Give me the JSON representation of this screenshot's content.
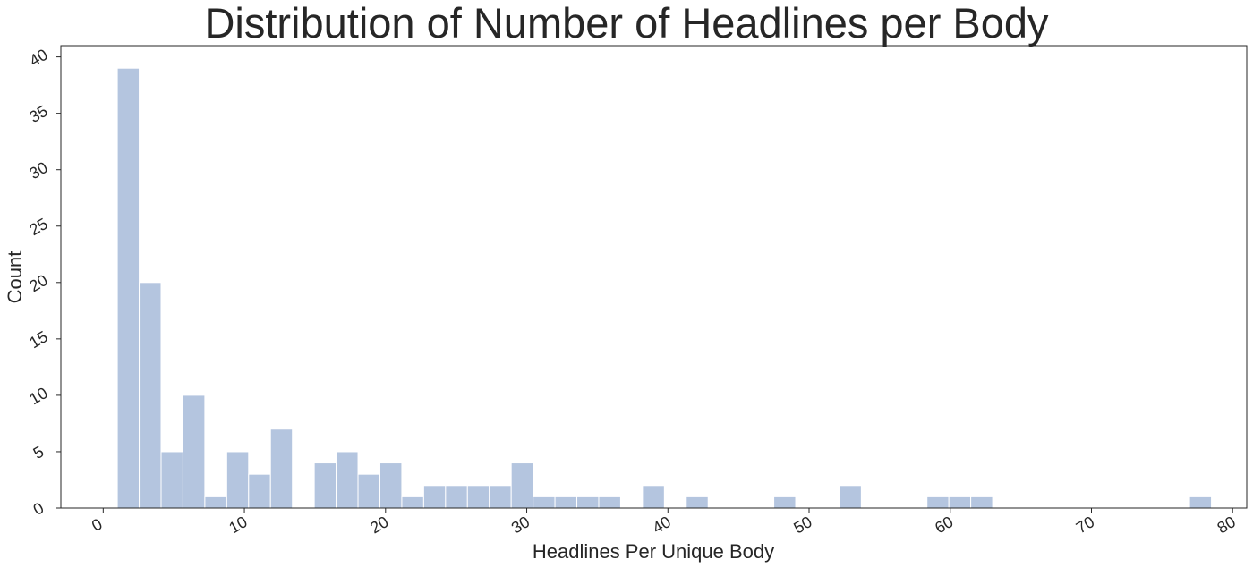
{
  "chart_data": {
    "type": "bar",
    "title": "Distribution of Number of Headlines per Body",
    "xlabel": "Headlines Per Unique Body",
    "ylabel": "Count",
    "xlim": [
      -3,
      81
    ],
    "ylim": [
      0,
      41
    ],
    "xticks": [
      0,
      10,
      20,
      30,
      40,
      50,
      60,
      70,
      80
    ],
    "yticks": [
      0,
      5,
      10,
      15,
      20,
      25,
      30,
      35,
      40
    ],
    "grid": false,
    "legend": "none",
    "bar_color": "#b4c5df",
    "bins": [
      {
        "x0": 1.0,
        "x1": 2.55,
        "count": 39
      },
      {
        "x0": 2.55,
        "x1": 4.1,
        "count": 20
      },
      {
        "x0": 4.1,
        "x1": 5.65,
        "count": 5
      },
      {
        "x0": 5.65,
        "x1": 7.2,
        "count": 10
      },
      {
        "x0": 7.2,
        "x1": 8.75,
        "count": 1
      },
      {
        "x0": 8.75,
        "x1": 10.3,
        "count": 5
      },
      {
        "x0": 10.3,
        "x1": 11.85,
        "count": 3
      },
      {
        "x0": 11.85,
        "x1": 13.4,
        "count": 7
      },
      {
        "x0": 13.4,
        "x1": 14.95,
        "count": 0
      },
      {
        "x0": 14.95,
        "x1": 16.5,
        "count": 4
      },
      {
        "x0": 16.5,
        "x1": 18.05,
        "count": 5
      },
      {
        "x0": 18.05,
        "x1": 19.6,
        "count": 3
      },
      {
        "x0": 19.6,
        "x1": 21.15,
        "count": 4
      },
      {
        "x0": 21.15,
        "x1": 22.7,
        "count": 1
      },
      {
        "x0": 22.7,
        "x1": 24.25,
        "count": 2
      },
      {
        "x0": 24.25,
        "x1": 25.8,
        "count": 2
      },
      {
        "x0": 25.8,
        "x1": 27.35,
        "count": 2
      },
      {
        "x0": 27.35,
        "x1": 28.9,
        "count": 2
      },
      {
        "x0": 28.9,
        "x1": 30.45,
        "count": 4
      },
      {
        "x0": 30.45,
        "x1": 32.0,
        "count": 1
      },
      {
        "x0": 32.0,
        "x1": 33.55,
        "count": 1
      },
      {
        "x0": 33.55,
        "x1": 35.1,
        "count": 1
      },
      {
        "x0": 35.1,
        "x1": 36.65,
        "count": 1
      },
      {
        "x0": 38.2,
        "x1": 39.75,
        "count": 2
      },
      {
        "x0": 41.3,
        "x1": 42.85,
        "count": 1
      },
      {
        "x0": 47.5,
        "x1": 49.05,
        "count": 1
      },
      {
        "x0": 52.15,
        "x1": 53.7,
        "count": 2
      },
      {
        "x0": 58.35,
        "x1": 59.9,
        "count": 1
      },
      {
        "x0": 59.9,
        "x1": 61.45,
        "count": 1
      },
      {
        "x0": 61.45,
        "x1": 63.0,
        "count": 1
      },
      {
        "x0": 76.95,
        "x1": 78.5,
        "count": 1
      }
    ]
  }
}
